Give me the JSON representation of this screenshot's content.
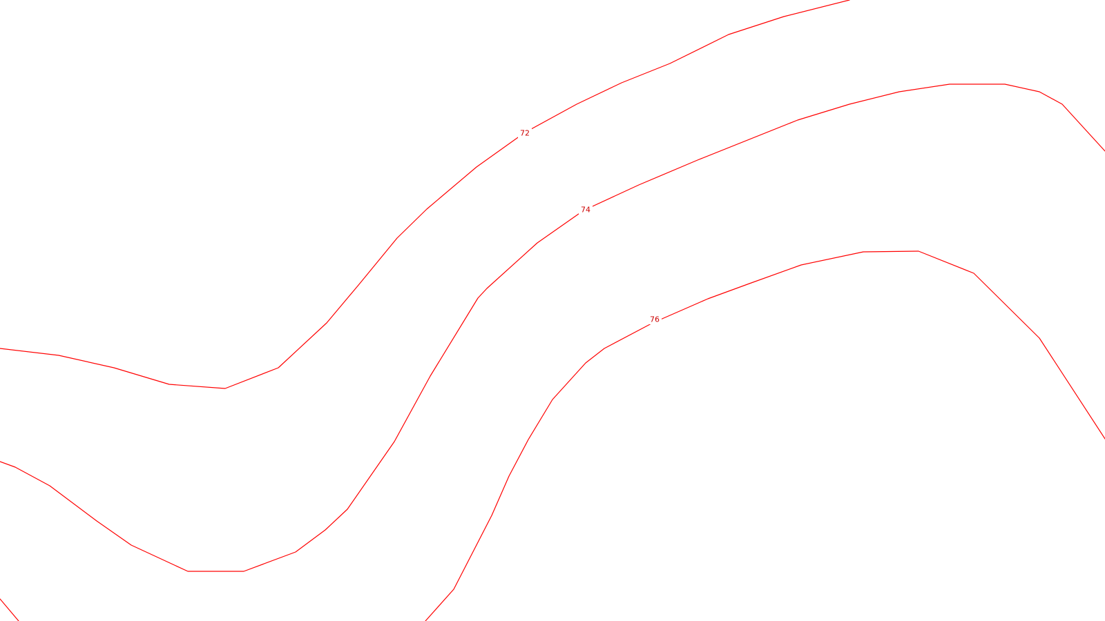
{
  "map": {
    "background_color": "#ffffff",
    "contour_color": "#ff0000",
    "label_color": "#cc0000"
  },
  "contours": [
    {
      "id": "line-72",
      "label": "72"
    },
    {
      "id": "line-74",
      "label": "74"
    },
    {
      "id": "line-76",
      "label": "76"
    },
    {
      "id": "line-bottom-left"
    },
    {
      "id": "line-right-arc"
    }
  ]
}
